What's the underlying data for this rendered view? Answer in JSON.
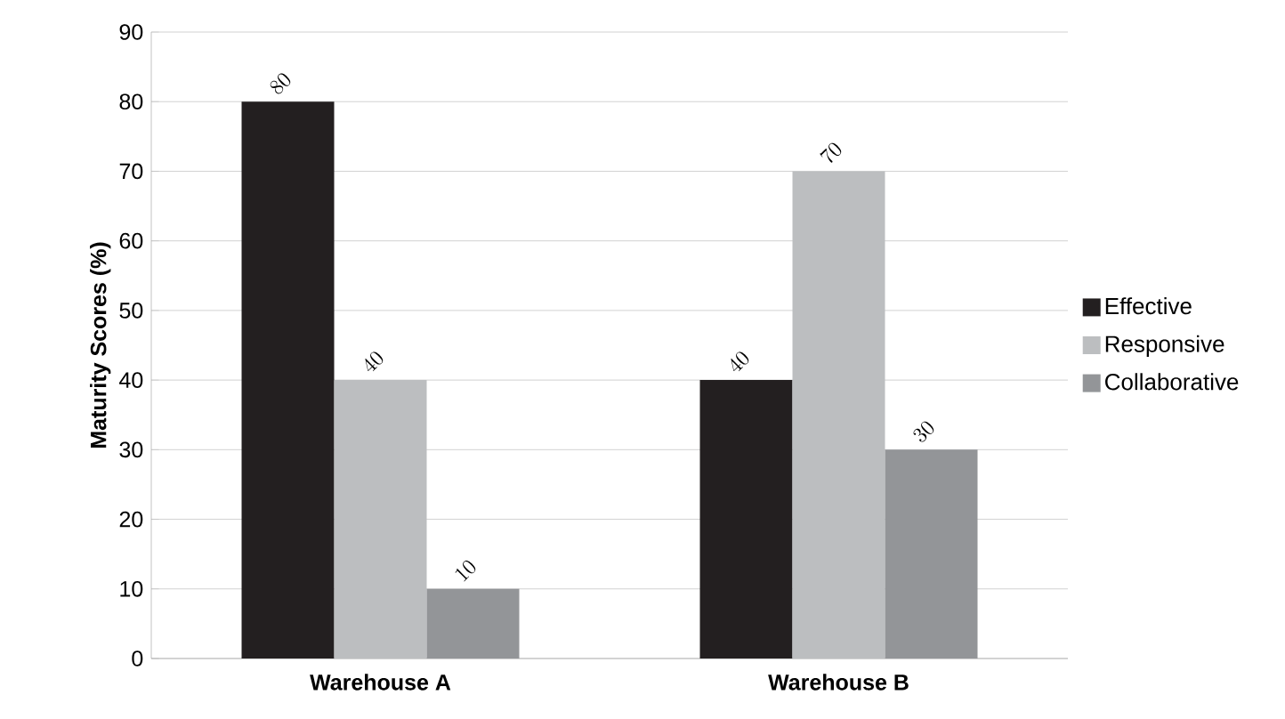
{
  "chart_data": {
    "type": "bar",
    "ylabel": "Maturity Scores (%)",
    "categories": [
      "Warehouse A",
      "Warehouse B"
    ],
    "series": [
      {
        "name": "Effective",
        "color": "#231f20",
        "values": [
          80,
          40
        ]
      },
      {
        "name": "Responsive",
        "color": "#bcbec0",
        "values": [
          40,
          70
        ]
      },
      {
        "name": "Collaborative",
        "color": "#939598",
        "values": [
          10,
          30
        ]
      }
    ],
    "ylim": [
      0,
      90
    ],
    "yticks": [
      0,
      10,
      20,
      30,
      40,
      50,
      60,
      70,
      80,
      90
    ],
    "grid": "y",
    "legend": "right",
    "data_labels": true
  }
}
